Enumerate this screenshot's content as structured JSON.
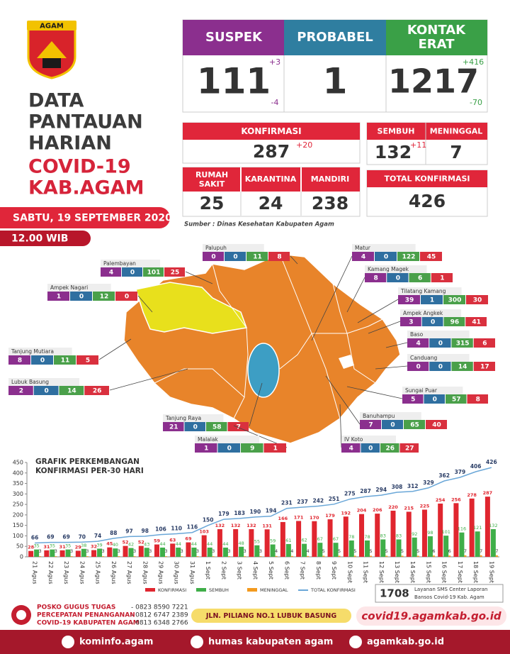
{
  "header": {
    "logo_text": "AGAM",
    "title_lines": [
      "DATA",
      "PANTAUAN",
      "HARIAN"
    ],
    "subtitle_lines": [
      "COVID-19",
      "KAB.AGAM"
    ],
    "date": "SABTU, 19 SEPTEMBER 2020",
    "time": "12.00 WIB"
  },
  "stats": {
    "suspek": {
      "label": "SUSPEK",
      "value": "111",
      "up": "+3",
      "down": "-4"
    },
    "probabel": {
      "label": "PROBABEL",
      "value": "1"
    },
    "kontak_erat": {
      "label_lines": [
        "KONTAK",
        "ERAT"
      ],
      "value": "1217",
      "up": "+416",
      "down": "-70"
    },
    "konfirmasi": {
      "label": "KONFIRMASI",
      "value": "287",
      "up": "+20"
    },
    "rumah_sakit": {
      "label_lines": [
        "RUMAH",
        "SAKIT"
      ],
      "value": "25"
    },
    "karantina": {
      "label": "KARANTINA",
      "value": "24"
    },
    "mandiri": {
      "label": "MANDIRI",
      "value": "238"
    },
    "sembuh": {
      "label": "SEMBUH",
      "value": "132",
      "up": "+11"
    },
    "meninggal": {
      "label": "MENINGGAL",
      "value": "7"
    },
    "total_konfirmasi": {
      "label": "TOTAL KONFIRMASI",
      "value": "426"
    },
    "source": "Sumber : Dinas Kesehatan Kabupaten Agam"
  },
  "districts": [
    {
      "name": "Palupuh",
      "values": [
        0,
        0,
        11,
        8
      ]
    },
    {
      "name": "Palembayan",
      "values": [
        4,
        0,
        101,
        25
      ]
    },
    {
      "name": "Ampek Nagari",
      "values": [
        1,
        0,
        12,
        0
      ]
    },
    {
      "name": "Tanjung Mutiara",
      "values": [
        8,
        0,
        11,
        5
      ]
    },
    {
      "name": "Lubuk Basung",
      "values": [
        2,
        0,
        14,
        26
      ]
    },
    {
      "name": "Tanjung Raya",
      "values": [
        21,
        0,
        58,
        7
      ]
    },
    {
      "name": "Malalak",
      "values": [
        1,
        0,
        9,
        1
      ]
    },
    {
      "name": "IV Koto",
      "values": [
        4,
        0,
        26,
        27
      ]
    },
    {
      "name": "Banuhampu",
      "values": [
        7,
        0,
        65,
        40
      ]
    },
    {
      "name": "Sungai Puar",
      "values": [
        5,
        0,
        57,
        8
      ]
    },
    {
      "name": "Canduang",
      "values": [
        0,
        0,
        14,
        17
      ]
    },
    {
      "name": "Baso",
      "values": [
        4,
        0,
        315,
        6
      ]
    },
    {
      "name": "Ampek Angkek",
      "values": [
        3,
        0,
        96,
        41
      ]
    },
    {
      "name": "Tilatang Kamang",
      "values": [
        39,
        1,
        300,
        30
      ]
    },
    {
      "name": "Kamang Magek",
      "values": [
        8,
        0,
        6,
        1
      ]
    },
    {
      "name": "Matur",
      "values": [
        4,
        0,
        122,
        45
      ]
    }
  ],
  "chart_data": {
    "type": "bar",
    "title": [
      "GRAFIK PERKEMBANGAN",
      "KONFIRMASI PER-30 HARI"
    ],
    "categories": [
      "21 Agus",
      "22 Agus",
      "23 Agus",
      "24 Agus",
      "25 Agus",
      "26 Agus",
      "27 Agus",
      "28 Agus",
      "29 Agus",
      "30 Agus",
      "31 Agus",
      "1 Sept",
      "2 Sept",
      "3 Sept",
      "4 Sept",
      "5 Sept",
      "6 Sept",
      "7 Sept",
      "8 Sept",
      "9 Sept",
      "10 Sept",
      "11 Sept",
      "12 Sept",
      "13 Sept",
      "14 Sept",
      "15 Sept",
      "16 Sept",
      "17 Sept",
      "18 Sept",
      "19 Sept"
    ],
    "series": [
      {
        "name": "KONFIRMASI",
        "color": "#e0262f",
        "values": [
          28,
          31,
          31,
          29,
          32,
          45,
          52,
          52,
          59,
          63,
          69,
          103,
          132,
          132,
          132,
          131,
          166,
          171,
          170,
          179,
          192,
          204,
          206,
          220,
          215,
          225,
          254,
          256,
          278,
          287
        ]
      },
      {
        "name": "SEMBUH",
        "color": "#3fae49",
        "values": [
          35,
          35,
          35,
          38,
          39,
          40,
          42,
          43,
          44,
          44,
          44,
          44,
          44,
          48,
          55,
          59,
          61,
          62,
          67,
          67,
          78,
          78,
          83,
          83,
          92,
          98,
          101,
          116,
          121,
          132
        ]
      },
      {
        "name": "MENINGGAL",
        "color": "#f39a1e",
        "values": [
          3,
          3,
          3,
          3,
          3,
          3,
          3,
          3,
          3,
          3,
          3,
          3,
          3,
          3,
          3,
          4,
          4,
          4,
          5,
          5,
          5,
          5,
          5,
          5,
          5,
          6,
          6,
          7,
          7,
          7
        ]
      },
      {
        "name": "TOTAL KONFIRMASI",
        "color": "#6aa7d8",
        "type": "line",
        "values": [
          66,
          69,
          69,
          70,
          74,
          88,
          97,
          98,
          106,
          110,
          116,
          150,
          179,
          183,
          190,
          194,
          231,
          237,
          242,
          251,
          275,
          287,
          294,
          308,
          312,
          329,
          362,
          379,
          406,
          426
        ]
      }
    ],
    "ylim": [
      0,
      450
    ],
    "yticks": [
      0,
      50,
      100,
      150,
      200,
      250,
      300,
      350,
      400,
      450
    ],
    "grid": false,
    "legend": "bottom"
  },
  "footer": {
    "sms": {
      "number": "1708",
      "text_lines": [
        "Layanan SMS Center Laporan",
        "Bansos Covid-19 Kab. Agam"
      ]
    },
    "posko_lines": [
      "POSKO GUGUS TUGAS",
      "PERCEPATAN PENANGANAN",
      "COVID-19 KABUPATEN AGAM"
    ],
    "phones": [
      "- 0823 8590 7221",
      "- 0812 6747 2389",
      "- 0813 6348 2766"
    ],
    "address": "JLN. PILIANG NO.1 LUBUK BASUNG",
    "website": "covid19.agamkab.go.id",
    "socials": [
      "kominfo.agam",
      "humas kabupaten agam",
      "agamkab.go.id"
    ]
  }
}
